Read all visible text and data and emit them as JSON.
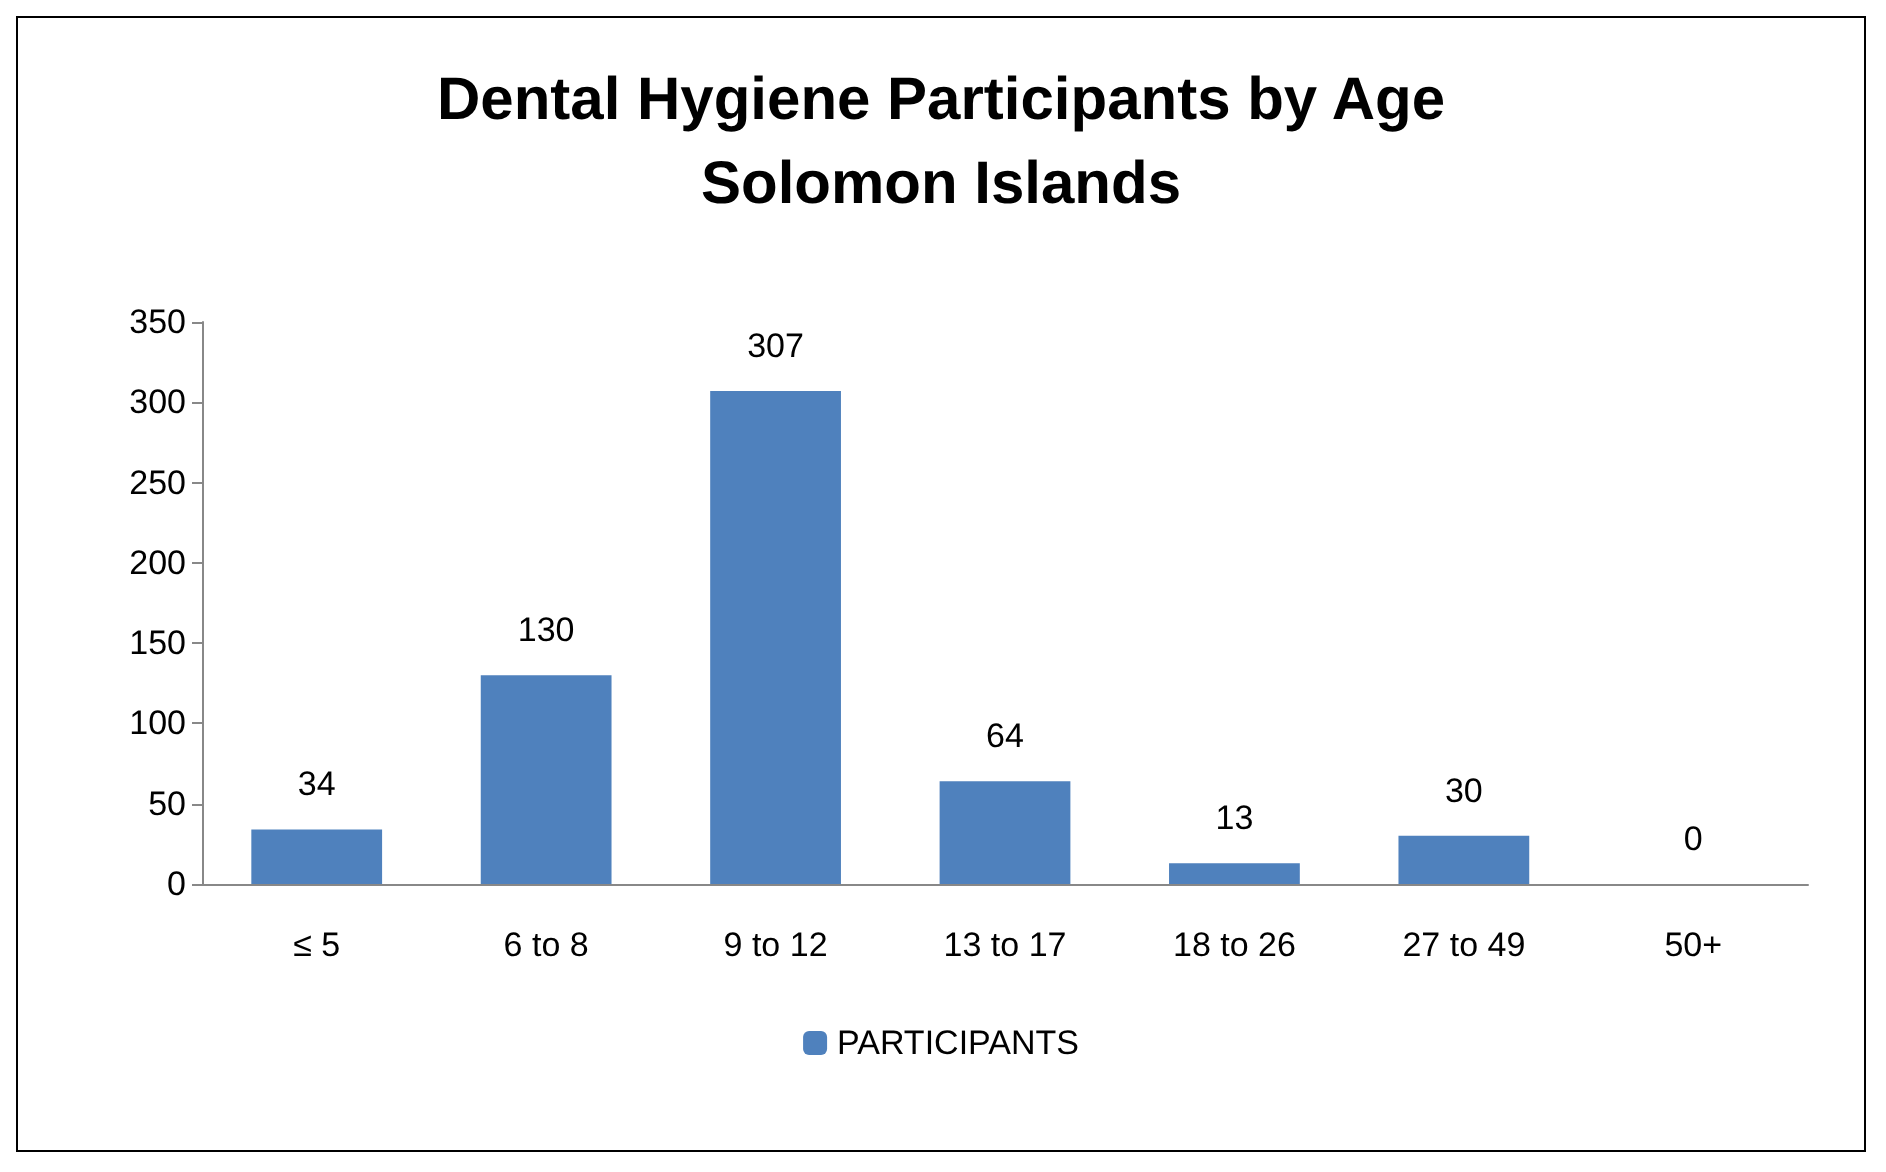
{
  "chart_data": {
    "type": "bar",
    "title": "Dental Hygiene Participants by Age\nSolomon Islands",
    "categories": [
      "≤ 5",
      "6 to 8",
      "9 to 12",
      "13 to 17",
      "18 to 26",
      "27 to 49",
      "50+"
    ],
    "series": [
      {
        "name": "PARTICIPANTS",
        "color": "#4f81bd",
        "values": [
          34,
          130,
          307,
          64,
          13,
          30,
          0
        ]
      }
    ],
    "ylim": [
      0,
      350
    ],
    "yticks": [
      0,
      50,
      100,
      150,
      200,
      250,
      300,
      350
    ],
    "grid": false,
    "legend": "bottom",
    "data_labels": true
  }
}
